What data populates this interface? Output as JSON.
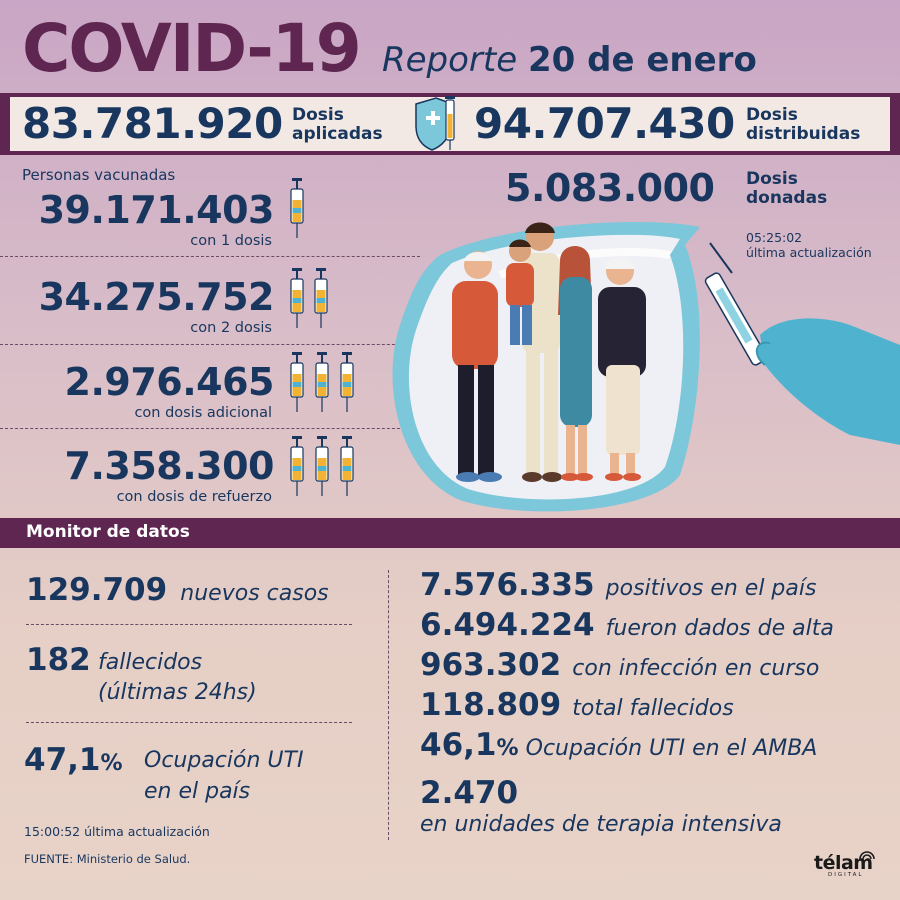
{
  "header": {
    "title": "COVID-19",
    "report_word": "Reporte",
    "report_date": "20 de enero"
  },
  "doses": {
    "applied_value": "83.781.920",
    "applied_label_1": "Dosis",
    "applied_label_2": "aplicadas",
    "distributed_value": "94.707.430",
    "distributed_label_1": "Dosis",
    "distributed_label_2": "distribuidas",
    "donated_value": "5.083.000",
    "donated_label_1": "Dosis",
    "donated_label_2": "donadas",
    "updated_time": "05:25:02",
    "updated_label": "última actualización"
  },
  "vaccinated": {
    "title": "Personas vacunadas",
    "rows": [
      {
        "value": "39.171.403",
        "label": "con 1 dosis",
        "syringes": 1
      },
      {
        "value": "34.275.752",
        "label": "con 2 dosis",
        "syringes": 2
      },
      {
        "value": "2.976.465",
        "label": "con dosis adicional",
        "syringes": 3
      },
      {
        "value": "7.358.300",
        "label": "con dosis de refuerzo",
        "syringes": 3
      }
    ]
  },
  "monitor": {
    "title": "Monitor de datos",
    "left": {
      "new_cases_value": "129.709",
      "new_cases_label": "nuevos casos",
      "deaths_value": "182",
      "deaths_label_1": "fallecidos",
      "deaths_label_2": "(últimas 24hs)",
      "icu_value": "47,1",
      "icu_percent": "%",
      "icu_label_1": "Ocupación UTI",
      "icu_label_2": "en el país"
    },
    "right": {
      "positives_value": "7.576.335",
      "positives_label": "positivos en el país",
      "discharged_value": "6.494.224",
      "discharged_label": "fueron dados de alta",
      "active_value": "963.302",
      "active_label": "con infección en curso",
      "total_deaths_value": "118.809",
      "total_deaths_label": "total fallecidos",
      "amba_icu_value": "46,1",
      "amba_icu_percent": "%",
      "amba_icu_label": "Ocupación UTI en el AMBA",
      "icu_units_value": "2.470",
      "icu_units_label": "en unidades de terapia intensiva"
    },
    "updated_time": "15:00:52",
    "updated_label": "última actualización",
    "source": "FUENTE: Ministerio de Salud."
  },
  "brand": {
    "name": "télam",
    "sub": "DIGITAL"
  },
  "colors": {
    "plum": "#5e2650",
    "navy": "#18365e",
    "glove": "#4fb3cf",
    "syringe_liquid": "#f2b233"
  }
}
